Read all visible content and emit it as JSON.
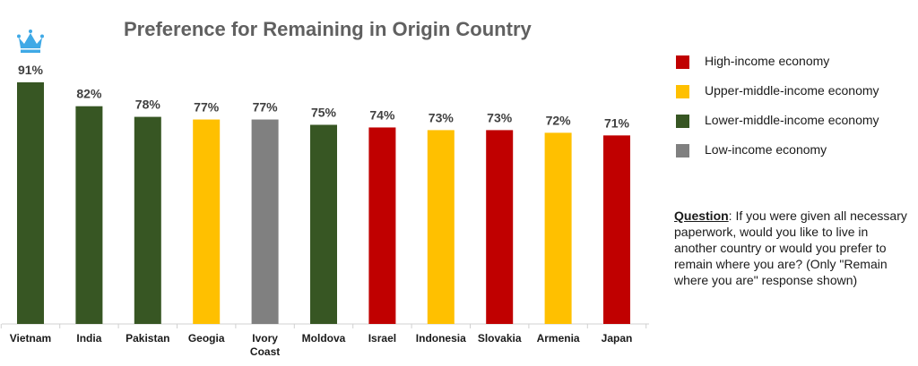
{
  "chart_data": {
    "type": "bar",
    "title": "Preference for Remaining in Origin Country",
    "xlabel": "",
    "ylabel": "",
    "ylim": [
      0,
      100
    ],
    "grid": false,
    "legend_placement": "right",
    "categories": [
      "Vietnam",
      "India",
      "Pakistan",
      "Geogia",
      "Ivory Coast",
      "Moldova",
      "Israel",
      "Indonesia",
      "Slovakia",
      "Armenia",
      "Japan"
    ],
    "values": [
      91,
      82,
      78,
      77,
      77,
      75,
      74,
      73,
      73,
      72,
      71
    ],
    "value_labels": [
      "91%",
      "82%",
      "78%",
      "77%",
      "77%",
      "75%",
      "74%",
      "73%",
      "73%",
      "72%",
      "71%"
    ],
    "income_group": [
      "lower-middle",
      "lower-middle",
      "lower-middle",
      "upper-middle",
      "low",
      "lower-middle",
      "high",
      "upper-middle",
      "high",
      "upper-middle",
      "high"
    ],
    "legend": [
      {
        "key": "high",
        "label": "High-income economy",
        "color": "#C00000"
      },
      {
        "key": "upper-middle",
        "label": "Upper-middle-income economy",
        "color": "#FFC000"
      },
      {
        "key": "lower-middle",
        "label": "Lower-middle-income economy",
        "color": "#375623"
      },
      {
        "key": "low",
        "label": "Low-income economy",
        "color": "#808080"
      }
    ]
  },
  "logo": {
    "icon": "crown-icon",
    "color": "#3FA9E6"
  },
  "note": {
    "label": "Question",
    "text": ": If you were given all necessary paperwork, would you like to live in another country or would you prefer to remain where you are? (Only \"Remain where you are\" response shown)"
  }
}
